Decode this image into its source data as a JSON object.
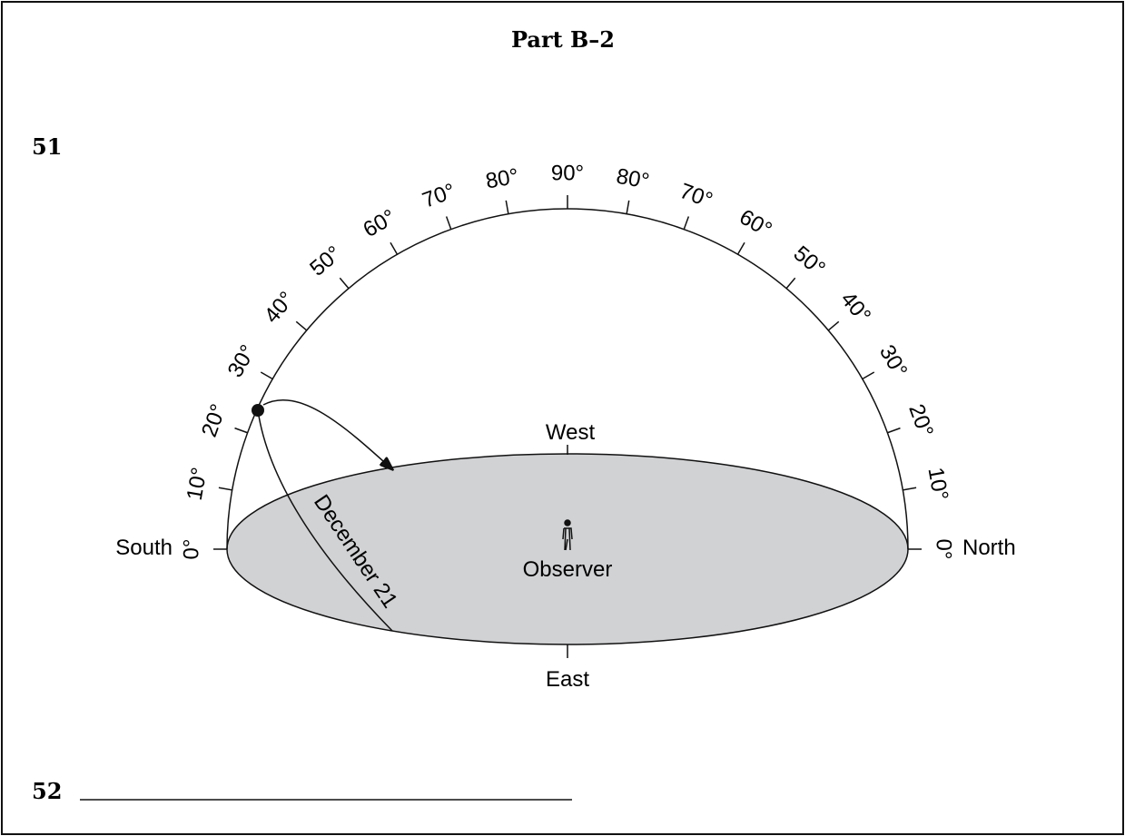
{
  "header": {
    "title": "Part B–2"
  },
  "questions": [
    {
      "number": "51"
    },
    {
      "number": "52"
    }
  ],
  "diagram": {
    "altitude_labels": [
      "0°",
      "10°",
      "20°",
      "30°",
      "40°",
      "50°",
      "60°",
      "70°",
      "80°",
      "90°",
      "80°",
      "70°",
      "60°",
      "50°",
      "40°",
      "30°",
      "20°",
      "10°",
      "0°"
    ],
    "directions": {
      "south": "South",
      "north": "North",
      "west": "West",
      "east": "East"
    },
    "observer": "Observer",
    "path_label": "December 21"
  }
}
